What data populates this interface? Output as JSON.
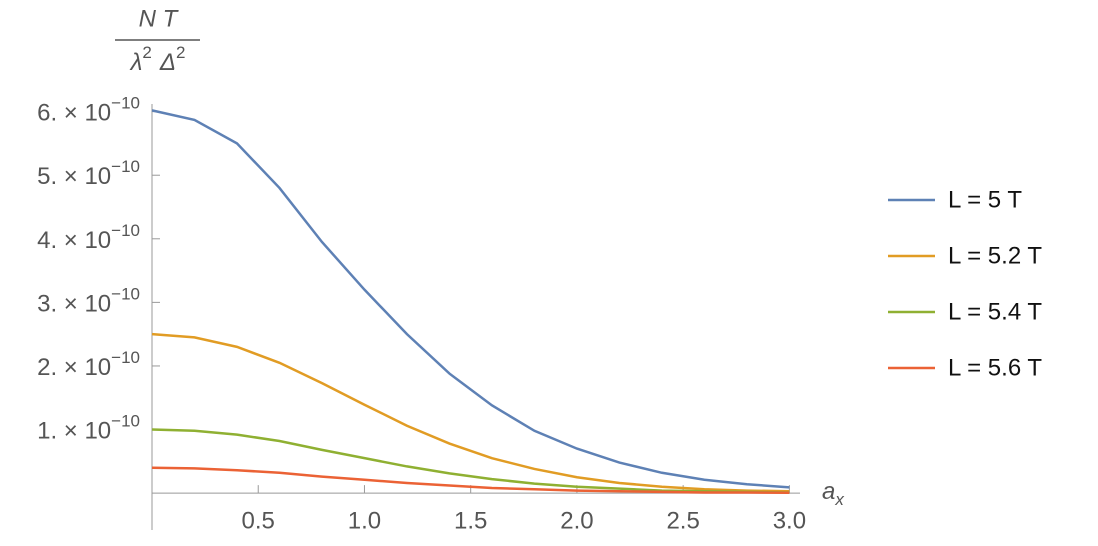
{
  "chart_data": {
    "type": "line",
    "ylabel": {
      "numerator": "N T",
      "denominator": [
        {
          "base": "λ",
          "sup": "2"
        },
        {
          "base": "Δ",
          "sup": "2"
        }
      ]
    },
    "xlabel": {
      "base": "a",
      "sub": "x"
    },
    "x": [
      0,
      0.2,
      0.4,
      0.6,
      0.8,
      1.0,
      1.2,
      1.4,
      1.6,
      1.8,
      2.0,
      2.2,
      2.4,
      2.6,
      2.8,
      3.0
    ],
    "series": [
      {
        "name": "L = 5 T",
        "color": "#5e81b5",
        "values": [
          6.02e-10,
          5.87e-10,
          5.5e-10,
          4.8e-10,
          3.95e-10,
          3.2e-10,
          2.5e-10,
          1.88e-10,
          1.38e-10,
          9.8e-11,
          7e-11,
          4.8e-11,
          3.2e-11,
          2.1e-11,
          1.4e-11,
          9e-12
        ]
      },
      {
        "name": "L = 5.2 T",
        "color": "#e19c24",
        "values": [
          2.5e-10,
          2.45e-10,
          2.3e-10,
          2.05e-10,
          1.73e-10,
          1.39e-10,
          1.06e-10,
          7.8e-11,
          5.5e-11,
          3.8e-11,
          2.5e-11,
          1.6e-11,
          1e-11,
          6e-12,
          4e-12,
          3e-12
        ]
      },
      {
        "name": "L = 5.4 T",
        "color": "#8fb032",
        "values": [
          1e-10,
          9.8e-11,
          9.2e-11,
          8.2e-11,
          6.8e-11,
          5.5e-11,
          4.2e-11,
          3.1e-11,
          2.2e-11,
          1.5e-11,
          1e-11,
          7e-12,
          4e-12,
          3e-12,
          2e-12,
          1e-12
        ]
      },
      {
        "name": "L = 5.6 T",
        "color": "#eb6235",
        "values": [
          4e-11,
          3.9e-11,
          3.6e-11,
          3.2e-11,
          2.6e-11,
          2.1e-11,
          1.6e-11,
          1.2e-11,
          8e-12,
          6e-12,
          4e-12,
          3e-12,
          2e-12,
          1e-12,
          1e-12,
          5e-13
        ]
      }
    ],
    "xlim": [
      0,
      3.05
    ],
    "ylim": [
      -5.8e-11,
      6.12e-10
    ],
    "xticks": [
      0.5,
      {
        "value": 1,
        "label": "1.0"
      },
      1.5,
      {
        "value": 2,
        "label": "2.0"
      },
      2.5,
      {
        "value": 3,
        "label": "3.0"
      }
    ],
    "yticks": [
      {
        "value": 1e-10,
        "label": "1. × 10",
        "exponent": "−10"
      },
      {
        "value": 2e-10,
        "label": "2. × 10",
        "exponent": "−10"
      },
      {
        "value": 3e-10,
        "label": "3. × 10",
        "exponent": "−10"
      },
      {
        "value": 4e-10,
        "label": "4. × 10",
        "exponent": "−10"
      },
      {
        "value": 5e-10,
        "label": "5. × 10",
        "exponent": "−10"
      },
      {
        "value": 6e-10,
        "label": "6. × 10",
        "exponent": "−10"
      }
    ],
    "legend": "right"
  }
}
